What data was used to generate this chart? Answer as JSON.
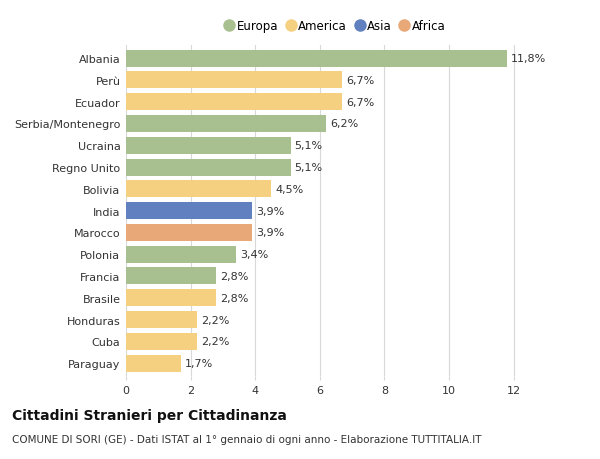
{
  "countries": [
    "Albania",
    "Perù",
    "Ecuador",
    "Serbia/Montenegro",
    "Ucraina",
    "Regno Unito",
    "Bolivia",
    "India",
    "Marocco",
    "Polonia",
    "Francia",
    "Brasile",
    "Honduras",
    "Cuba",
    "Paraguay"
  ],
  "values": [
    11.8,
    6.7,
    6.7,
    6.2,
    5.1,
    5.1,
    4.5,
    3.9,
    3.9,
    3.4,
    2.8,
    2.8,
    2.2,
    2.2,
    1.7
  ],
  "labels": [
    "11,8%",
    "6,7%",
    "6,7%",
    "6,2%",
    "5,1%",
    "5,1%",
    "4,5%",
    "3,9%",
    "3,9%",
    "3,4%",
    "2,8%",
    "2,8%",
    "2,2%",
    "2,2%",
    "1,7%"
  ],
  "categories": [
    "Europa",
    "America",
    "America",
    "Europa",
    "Europa",
    "Europa",
    "America",
    "Asia",
    "Africa",
    "Europa",
    "Europa",
    "America",
    "America",
    "America",
    "America"
  ],
  "color_map": {
    "Europa": "#a8c090",
    "America": "#f5d080",
    "Asia": "#6080c0",
    "Africa": "#e8a878"
  },
  "legend_order": [
    "Europa",
    "America",
    "Asia",
    "Africa"
  ],
  "xlim": [
    0,
    13
  ],
  "xticks": [
    0,
    2,
    4,
    6,
    8,
    10,
    12
  ],
  "title": "Cittadini Stranieri per Cittadinanza",
  "subtitle": "COMUNE DI SORI (GE) - Dati ISTAT al 1° gennaio di ogni anno - Elaborazione TUTTITALIA.IT",
  "bg_color": "#ffffff",
  "grid_color": "#d8d8d8",
  "bar_height": 0.78,
  "title_fontsize": 10,
  "subtitle_fontsize": 7.5,
  "label_fontsize": 8,
  "tick_fontsize": 8,
  "legend_fontsize": 8.5
}
